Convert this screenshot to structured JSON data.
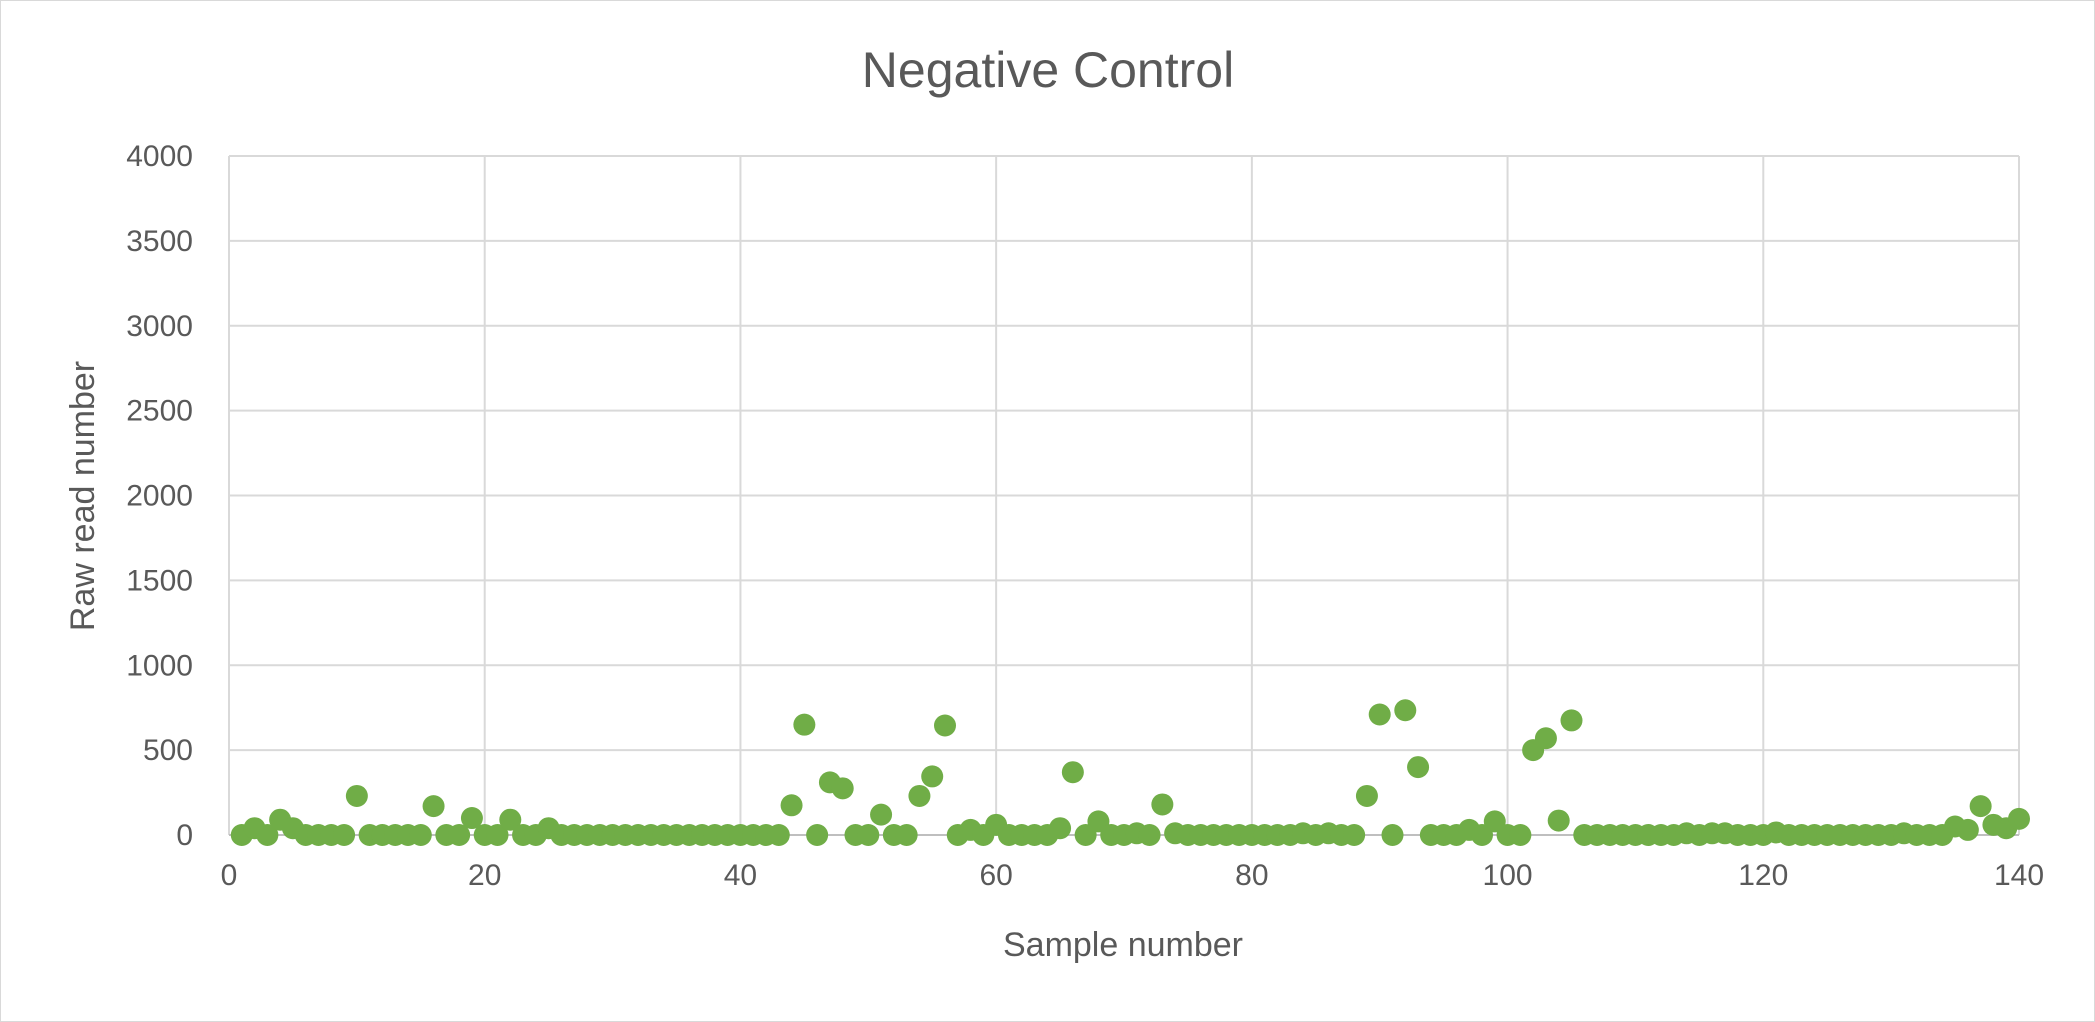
{
  "chart_data": {
    "type": "scatter",
    "title": "Negative Control",
    "xlabel": "Sample number",
    "ylabel": "Raw read number",
    "xlim": [
      0,
      140
    ],
    "ylim": [
      0,
      4000
    ],
    "x_ticks": [
      0,
      20,
      40,
      60,
      80,
      100,
      120,
      140
    ],
    "y_ticks": [
      0,
      500,
      1000,
      1500,
      2000,
      2500,
      3000,
      3500,
      4000
    ],
    "grid": true,
    "legend": "none",
    "marker_color": "#70ad47",
    "series": [
      {
        "x": [
          1,
          2,
          3,
          4,
          5,
          6,
          7,
          8,
          9,
          10,
          11,
          12,
          13,
          14,
          15,
          16,
          17,
          18,
          19,
          20,
          21,
          22,
          23,
          24,
          25,
          26,
          27,
          28,
          29,
          30,
          31,
          32,
          33,
          34,
          35,
          36,
          37,
          38,
          39,
          40,
          41,
          42,
          43,
          44,
          45,
          46,
          47,
          48,
          49,
          50,
          51,
          52,
          53,
          54,
          55,
          56,
          57,
          58,
          59,
          60,
          61,
          62,
          63,
          64,
          65,
          66,
          67,
          68,
          69,
          70,
          71,
          72,
          73,
          74,
          75,
          76,
          77,
          78,
          79,
          80,
          81,
          82,
          83,
          84,
          85,
          86,
          87,
          88,
          89,
          90,
          91,
          92,
          93,
          94,
          95,
          96,
          97,
          98,
          99,
          100,
          101,
          102,
          103,
          104,
          105,
          106,
          107,
          108,
          109,
          110,
          111,
          112,
          113,
          114,
          115,
          116,
          117,
          118,
          119,
          120,
          121,
          122,
          123,
          124,
          125,
          126,
          127,
          128,
          129,
          130,
          131,
          132,
          133,
          134,
          135,
          136,
          137,
          138,
          139,
          140
        ],
        "y": [
          0,
          40,
          0,
          90,
          40,
          0,
          0,
          0,
          0,
          230,
          0,
          0,
          0,
          0,
          0,
          170,
          0,
          0,
          100,
          0,
          0,
          90,
          0,
          0,
          40,
          0,
          0,
          0,
          0,
          0,
          0,
          0,
          0,
          0,
          0,
          0,
          0,
          0,
          0,
          0,
          0,
          0,
          0,
          175,
          650,
          0,
          310,
          275,
          0,
          0,
          120,
          0,
          0,
          230,
          345,
          645,
          0,
          30,
          0,
          60,
          0,
          0,
          0,
          0,
          40,
          370,
          0,
          80,
          0,
          0,
          10,
          0,
          180,
          10,
          0,
          0,
          0,
          0,
          0,
          0,
          0,
          0,
          0,
          10,
          0,
          10,
          0,
          0,
          230,
          710,
          0,
          735,
          400,
          0,
          0,
          0,
          30,
          0,
          80,
          0,
          0,
          500,
          570,
          85,
          675,
          0,
          0,
          0,
          0,
          0,
          0,
          0,
          0,
          10,
          0,
          10,
          10,
          0,
          0,
          0,
          15,
          0,
          0,
          0,
          0,
          0,
          0,
          0,
          0,
          0,
          10,
          0,
          0,
          0,
          50,
          30,
          170,
          60,
          40,
          95
        ]
      }
    ]
  }
}
